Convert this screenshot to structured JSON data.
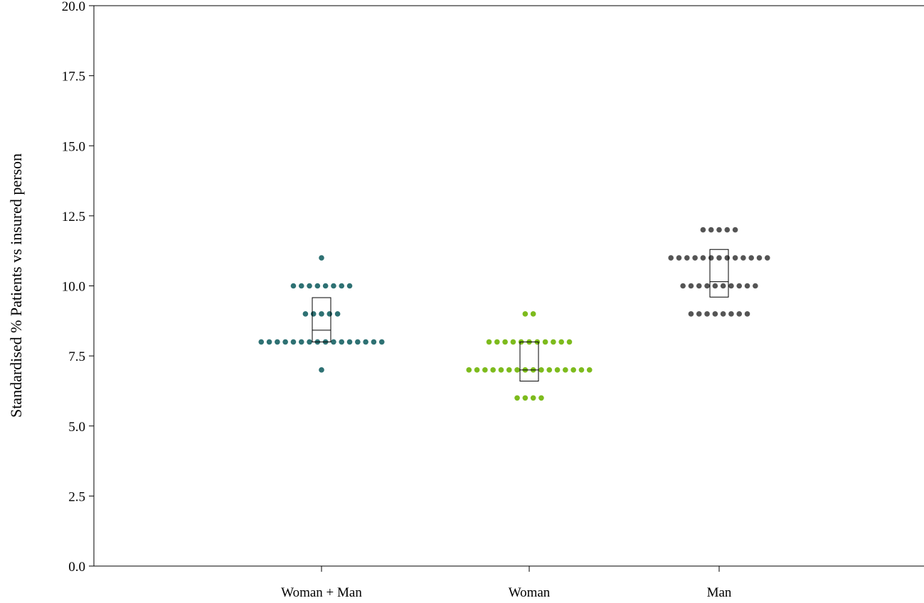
{
  "chart_data": {
    "type": "scatter",
    "subtype": "dot-plot-with-interquartile-box",
    "title": "",
    "xlabel": "",
    "ylabel": "Standardised % Patients vs insured person",
    "categories": [
      "Woman + Man",
      "Woman",
      "Man"
    ],
    "ylim": [
      0,
      20
    ],
    "yticks": [
      "0.0",
      "2.5",
      "5.0",
      "7.5",
      "10.0",
      "12.5",
      "15.0",
      "17.5",
      "20.0"
    ],
    "grid": false,
    "legend": "none",
    "series": [
      {
        "category": "Woman + Man",
        "color": "#2e7173",
        "counts": [
          {
            "y": 7,
            "n": 1
          },
          {
            "y": 8,
            "n": 16
          },
          {
            "y": 9,
            "n": 5
          },
          {
            "y": 10,
            "n": 8
          },
          {
            "y": 11,
            "n": 1
          }
        ],
        "box": {
          "q1": 8.0,
          "median": 8.42,
          "q3": 9.58
        }
      },
      {
        "category": "Woman",
        "color": "#7dbb1d",
        "counts": [
          {
            "y": 6,
            "n": 4
          },
          {
            "y": 7,
            "n": 16
          },
          {
            "y": 8,
            "n": 11
          },
          {
            "y": 9,
            "n": 2
          }
        ],
        "box": {
          "q1": 6.6,
          "median": 7.0,
          "q3": 8.0
        }
      },
      {
        "category": "Man",
        "color": "#555555",
        "counts": [
          {
            "y": 9,
            "n": 8
          },
          {
            "y": 10,
            "n": 10
          },
          {
            "y": 11,
            "n": 13
          },
          {
            "y": 12,
            "n": 5
          }
        ],
        "box": {
          "q1": 9.6,
          "median": 10.15,
          "q3": 11.3
        }
      }
    ]
  }
}
